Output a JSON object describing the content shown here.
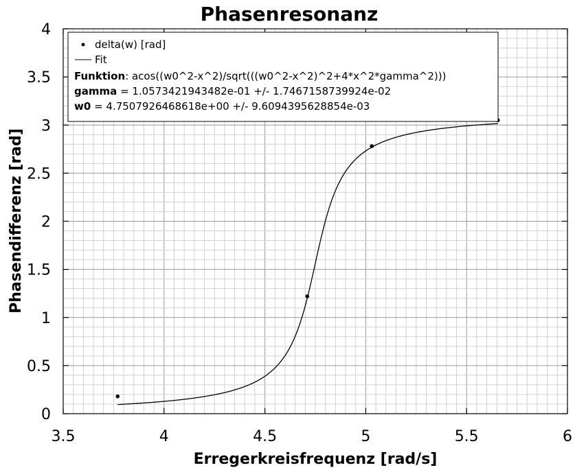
{
  "chart_data": {
    "type": "scatter",
    "title": "Phasenresonanz",
    "xlabel": "Erregerkreisfrequenz [rad/s]",
    "ylabel": "Phasendifferenz [rad]",
    "xlim": [
      3.5,
      6
    ],
    "ylim": [
      0,
      4
    ],
    "xticks": [
      "3.5",
      "4",
      "4.5",
      "5",
      "5.5",
      "6"
    ],
    "yticks": [
      "0",
      "0.5",
      "1",
      "1.5",
      "2",
      "2.5",
      "3",
      "3.5",
      "4"
    ],
    "grid": true,
    "legend_position": "top-left",
    "series": [
      {
        "name": "delta(w) [rad]",
        "kind": "points",
        "x": [
          3.77,
          4.71,
          5.03,
          5.655
        ],
        "y": [
          0.18,
          1.22,
          2.78,
          3.05
        ]
      },
      {
        "name": "Fit",
        "kind": "line",
        "model": "acos((w0^2-x^2)/sqrt(((w0^2-x^2)^2+4*x^2*gamma^2)))",
        "params": {
          "gamma": 0.10573421943482,
          "w0": 4.7507926468618
        },
        "x_range": [
          3.77,
          5.655
        ]
      }
    ],
    "legend": {
      "fit_function_label": "Funktion",
      "fit_function": ": acos((w0^2-x^2)/sqrt(((w0^2-x^2)^2+4*x^2*gamma^2)))",
      "gamma_label": "gamma",
      "gamma_value": " = 1.0573421943482e-01 +/- 1.7467158739924e-02",
      "w0_label": "w0",
      "w0_value": " = 4.7507926468618e+00 +/- 9.6094395628854e-03"
    }
  }
}
